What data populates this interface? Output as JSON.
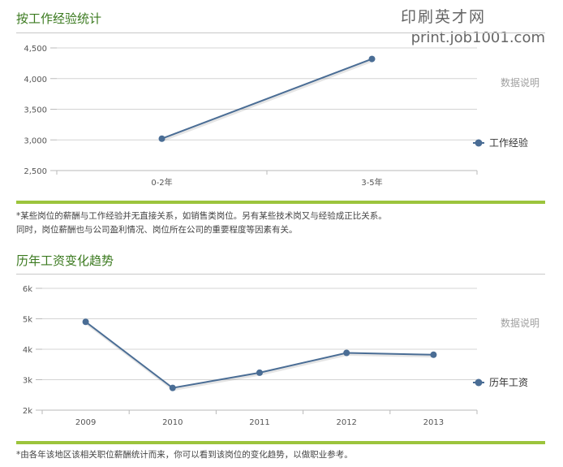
{
  "watermark": {
    "line1": "印刷英才网",
    "line2": "print.job1001.com"
  },
  "colors": {
    "series": "#4a6d95",
    "title": "#3b7a1f",
    "accent_rule": "#9cc43c",
    "grid": "#d4d4d4"
  },
  "section1": {
    "title": "按工作经验统计",
    "note_line1": "*某些岗位的薪酬与工作经验并无直接关系，如销售类岗位。另有某些技术岗又与经验成正比关系。",
    "note_line2": "同时，岗位薪酬也与公司盈利情况、岗位所在公司的重要程度等因素有关。"
  },
  "section2": {
    "title": "历年工资变化趋势",
    "note_line1": "*由各年该地区该相关职位薪酬统计而来，你可以看到该岗位的变化趋势，以做职业参考。"
  },
  "chart_data": [
    {
      "type": "line",
      "title": "按工作经验统计",
      "categories": [
        "0-2年",
        "3-5年"
      ],
      "series": [
        {
          "name": "工作经验",
          "values": [
            3020,
            4320
          ]
        }
      ],
      "ylim": [
        2500,
        4500
      ],
      "yticks": [
        2500,
        3000,
        3500,
        4000,
        4500
      ],
      "ytick_labels": [
        "2,500",
        "3,000",
        "3,500",
        "4,000",
        "4,500"
      ],
      "side_note": "数据说明",
      "grid": true,
      "legend": "right"
    },
    {
      "type": "line",
      "title": "历年工资变化趋势",
      "categories": [
        "2009",
        "2010",
        "2011",
        "2012",
        "2013"
      ],
      "series": [
        {
          "name": "历年工资",
          "values": [
            4900,
            2730,
            3230,
            3880,
            3820
          ]
        }
      ],
      "ylim": [
        2000,
        6000
      ],
      "yticks": [
        2000,
        3000,
        4000,
        5000,
        6000
      ],
      "ytick_labels": [
        "2k",
        "3k",
        "4k",
        "5k",
        "6k"
      ],
      "side_note": "数据说明",
      "grid": true,
      "legend": "right"
    }
  ]
}
